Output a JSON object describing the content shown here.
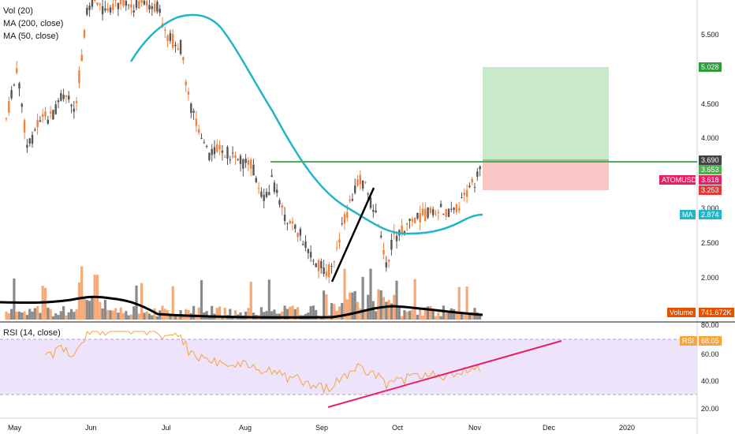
{
  "legend": {
    "vol": "Vol (20)",
    "ma200": "MA (200, close)",
    "ma50": "MA (50, close)",
    "rsi": "RSI (14, close)"
  },
  "price_axis": {
    "ticks": [
      "5.500",
      "4.500",
      "4.000",
      "3.000",
      "2.500",
      "2.000"
    ],
    "tags": {
      "target": "5.028",
      "entry": "3.690",
      "level": "3.653",
      "symbol": "ATOMUSDT",
      "last": "3.618",
      "stop": "3.253",
      "ma": "MA",
      "ma_value": "2.874",
      "volume": "Volume",
      "volume_value": "741.672K"
    }
  },
  "rsi_axis": {
    "ticks": [
      "80.00",
      "60.00",
      "40.00",
      "20.00"
    ],
    "tag_label": "RSI",
    "tag_value": "68.05"
  },
  "x_axis": [
    "May",
    "Jun",
    "Jul",
    "Aug",
    "Sep",
    "Oct",
    "Nov",
    "Dec",
    "2020"
  ],
  "colors": {
    "up": "#555555",
    "down": "#f0803c",
    "ma50": "#22b5c9",
    "ma200": "#000000",
    "target_zone": "#c8eacb",
    "stop_zone": "#f9c6c6",
    "resistance": "#4caf50",
    "trendline": "#e91e63",
    "rsi_line": "#f7a43b",
    "rsi_band": "#ede4fb"
  }
}
